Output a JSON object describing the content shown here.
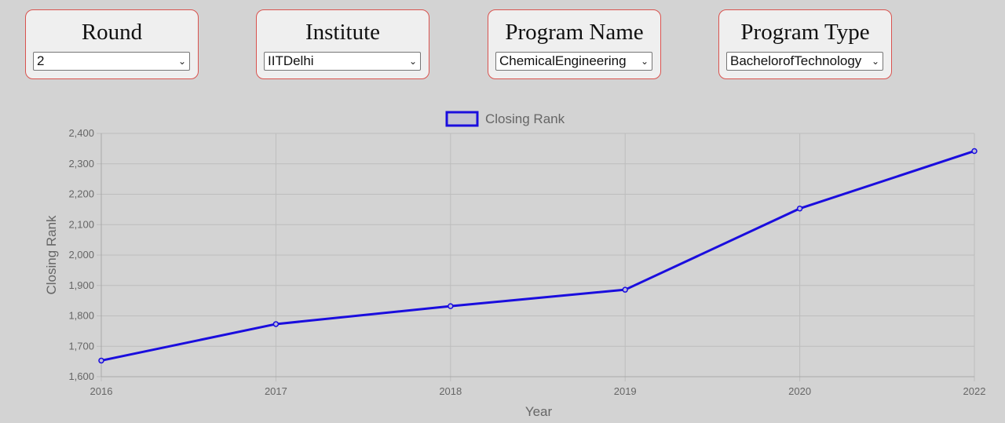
{
  "filters": [
    {
      "label": "Round",
      "value": "2"
    },
    {
      "label": "Institute",
      "value": "IITDelhi"
    },
    {
      "label": "Program Name",
      "value": "ChemicalEngineering"
    },
    {
      "label": "Program Type",
      "value": "BachelorofTechnology"
    }
  ],
  "icons": {
    "dropdown": "chevron-down-icon"
  },
  "colors": {
    "line": "#1a0dde",
    "card_border": "#d9534f",
    "background": "#d3d3d3"
  },
  "chart_data": {
    "type": "line",
    "categories": [
      "2016",
      "2017",
      "2018",
      "2019",
      "2020",
      "2022"
    ],
    "series": [
      {
        "name": "Closing Rank",
        "values": [
          1653,
          1773,
          1832,
          1886,
          2153,
          2342
        ]
      }
    ],
    "xlabel": "Year",
    "ylabel": "Closing Rank",
    "ylim": [
      1600,
      2400
    ],
    "yticks": [
      "1,600",
      "1,700",
      "1,800",
      "1,900",
      "2,000",
      "2,100",
      "2,200",
      "2,300",
      "2,400"
    ],
    "grid": true,
    "legend": "top-center"
  }
}
